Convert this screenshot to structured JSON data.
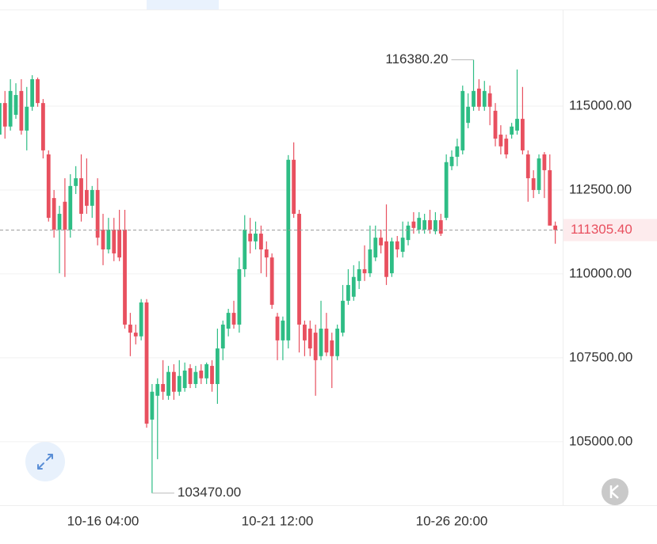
{
  "chart_data": {
    "type": "candlestick",
    "categories": [
      null,
      null,
      null,
      null,
      null,
      null,
      null,
      null,
      null,
      null,
      null,
      null,
      null,
      null,
      null,
      null,
      null,
      null,
      null,
      "10-16 04:00",
      null,
      null,
      null,
      null,
      null,
      null,
      null,
      null,
      null,
      null,
      null,
      null,
      null,
      null,
      null,
      null,
      null,
      null,
      null,
      null,
      null,
      null,
      null,
      null,
      null,
      null,
      null,
      null,
      null,
      null,
      null,
      "10-21 12:00",
      null,
      null,
      null,
      null,
      null,
      null,
      null,
      null,
      null,
      null,
      null,
      null,
      null,
      null,
      null,
      null,
      null,
      null,
      null,
      null,
      null,
      null,
      null,
      null,
      null,
      null,
      null,
      null,
      null,
      null,
      null,
      "10-26 20:00",
      null,
      null,
      null,
      null,
      null,
      null,
      null,
      null,
      null,
      null,
      null,
      null,
      null,
      null,
      null,
      null,
      null,
      null,
      null
    ],
    "values": [
      [
        114150,
        115570,
        113090,
        115090
      ],
      [
        115090,
        115450,
        114030,
        114390
      ],
      [
        114390,
        115800,
        114270,
        115450
      ],
      [
        114740,
        115680,
        114620,
        115330
      ],
      [
        115450,
        115800,
        114150,
        114270
      ],
      [
        114270,
        115570,
        113680,
        114980
      ],
      [
        114980,
        115920,
        114860,
        115800
      ],
      [
        115800,
        115850,
        114980,
        115090
      ],
      [
        115090,
        115210,
        113440,
        113680
      ],
      [
        113560,
        113680,
        111560,
        111670
      ],
      [
        112260,
        112500,
        111080,
        111320
      ],
      [
        111320,
        112030,
        110020,
        111790
      ],
      [
        112150,
        112850,
        109910,
        111320
      ],
      [
        111320,
        112970,
        111080,
        112620
      ],
      [
        112620,
        113210,
        112380,
        112850
      ],
      [
        112850,
        113560,
        111560,
        111790
      ],
      [
        112500,
        113440,
        111790,
        112030
      ],
      [
        112030,
        112620,
        111670,
        112500
      ],
      [
        112500,
        112850,
        110850,
        111080
      ],
      [
        111320,
        111790,
        110260,
        110730
      ],
      [
        110730,
        111670,
        110610,
        111320
      ],
      [
        111320,
        111670,
        110380,
        110610
      ],
      [
        111320,
        111910,
        110380,
        110490
      ],
      [
        111320,
        111910,
        108370,
        108490
      ],
      [
        108490,
        108840,
        107550,
        108250
      ],
      [
        108250,
        108490,
        107900,
        108140
      ],
      [
        108140,
        109250,
        108020,
        109150
      ],
      [
        109150,
        109250,
        105420,
        105540
      ],
      [
        105660,
        106720,
        103470,
        106490
      ],
      [
        106370,
        106890,
        104480,
        106720
      ],
      [
        106720,
        107430,
        106250,
        106490
      ],
      [
        106370,
        107260,
        106250,
        107080
      ],
      [
        107080,
        107310,
        106250,
        106490
      ],
      [
        106490,
        107430,
        106370,
        106960
      ],
      [
        106600,
        107360,
        106490,
        107120
      ],
      [
        107190,
        107310,
        106600,
        106720
      ],
      [
        106720,
        107260,
        106600,
        107080
      ],
      [
        107120,
        107310,
        106720,
        106890
      ],
      [
        106890,
        107360,
        106720,
        107310
      ],
      [
        107260,
        107430,
        106490,
        106720
      ],
      [
        106720,
        108370,
        106130,
        107780
      ],
      [
        107780,
        108610,
        107430,
        108490
      ],
      [
        108370,
        108960,
        108140,
        108840
      ],
      [
        108840,
        109200,
        108370,
        108490
      ],
      [
        108490,
        110490,
        108250,
        110140
      ],
      [
        110140,
        111750,
        109910,
        111320
      ],
      [
        111200,
        111670,
        110610,
        110970
      ],
      [
        110970,
        111560,
        110730,
        111200
      ],
      [
        111200,
        111440,
        110020,
        110730
      ],
      [
        110730,
        110970,
        109910,
        110490
      ],
      [
        110490,
        110610,
        108960,
        109080
      ],
      [
        108730,
        108840,
        107430,
        108020
      ],
      [
        108020,
        108730,
        107430,
        108610
      ],
      [
        108020,
        113540,
        107780,
        113400
      ],
      [
        113400,
        113920,
        111670,
        111790
      ],
      [
        111790,
        111910,
        107660,
        108490
      ],
      [
        108490,
        108610,
        107550,
        108020
      ],
      [
        108370,
        108610,
        107550,
        107780
      ],
      [
        108250,
        108490,
        106370,
        107430
      ],
      [
        107550,
        109200,
        107430,
        108370
      ],
      [
        108370,
        108840,
        107550,
        107660
      ],
      [
        108020,
        108250,
        106600,
        107550
      ],
      [
        107550,
        108490,
        107430,
        108370
      ],
      [
        108250,
        109670,
        108140,
        109200
      ],
      [
        109200,
        110140,
        109080,
        109670
      ],
      [
        109320,
        110260,
        109200,
        109910
      ],
      [
        109790,
        110380,
        109550,
        110140
      ],
      [
        110140,
        110850,
        109790,
        110020
      ],
      [
        110020,
        111440,
        109910,
        110730
      ],
      [
        110490,
        111440,
        110380,
        111080
      ],
      [
        111080,
        111320,
        110610,
        110850
      ],
      [
        110970,
        112070,
        109670,
        109910
      ],
      [
        110020,
        111080,
        109910,
        110970
      ],
      [
        110970,
        111130,
        110490,
        110730
      ],
      [
        110660,
        111560,
        110490,
        111080
      ],
      [
        111010,
        111560,
        110850,
        111440
      ],
      [
        111560,
        111840,
        111200,
        111370
      ],
      [
        111320,
        111840,
        111200,
        111670
      ],
      [
        111320,
        111790,
        111200,
        111600
      ],
      [
        111600,
        111910,
        111200,
        111320
      ],
      [
        111270,
        111840,
        111180,
        111600
      ],
      [
        111600,
        111790,
        111130,
        111200
      ],
      [
        111670,
        113560,
        111600,
        113330
      ],
      [
        113210,
        113680,
        113090,
        113490
      ],
      [
        113490,
        114030,
        113210,
        113800
      ],
      [
        113680,
        115610,
        113560,
        115450
      ],
      [
        114500,
        115380,
        114340,
        114980
      ],
      [
        114980,
        116380.2,
        114860,
        115450
      ],
      [
        115520,
        115800,
        114860,
        114980
      ],
      [
        114980,
        115750,
        114860,
        115450
      ],
      [
        115380,
        115610,
        114430,
        114980
      ],
      [
        114860,
        115090,
        113800,
        114030
      ],
      [
        114150,
        114430,
        113560,
        113800
      ],
      [
        114030,
        114150,
        113440,
        113560
      ],
      [
        114150,
        114500,
        114030,
        114390
      ],
      [
        114270,
        116090,
        114150,
        114620
      ],
      [
        114620,
        115570,
        113560,
        113680
      ],
      [
        113560,
        113680,
        112150,
        112850
      ],
      [
        112850,
        113090,
        112260,
        112500
      ],
      [
        112500,
        113560,
        112380,
        113440
      ],
      [
        113560,
        113630,
        112260,
        113090
      ],
      [
        113090,
        113560,
        111440,
        111440
      ],
      [
        111440,
        111560,
        110900,
        111305.4
      ]
    ],
    "up_color": "#2ebd85",
    "down_color": "#e8505f",
    "ylim": [
      103110,
      118160
    ],
    "yticks": [
      {
        "value": 115000,
        "label": "115000.00"
      },
      {
        "value": 112500,
        "label": "112500.00"
      },
      {
        "value": 110000,
        "label": "110000.00"
      },
      {
        "value": 107500,
        "label": "107500.00"
      },
      {
        "value": 105000,
        "label": "105000.00"
      }
    ],
    "grid": true,
    "high_label": {
      "value": 116380.2,
      "label": "116380.20"
    },
    "low_label": {
      "value": 103470,
      "label": "103470.00"
    },
    "last_price": {
      "value": 111305.4,
      "label": "111305.40"
    }
  }
}
